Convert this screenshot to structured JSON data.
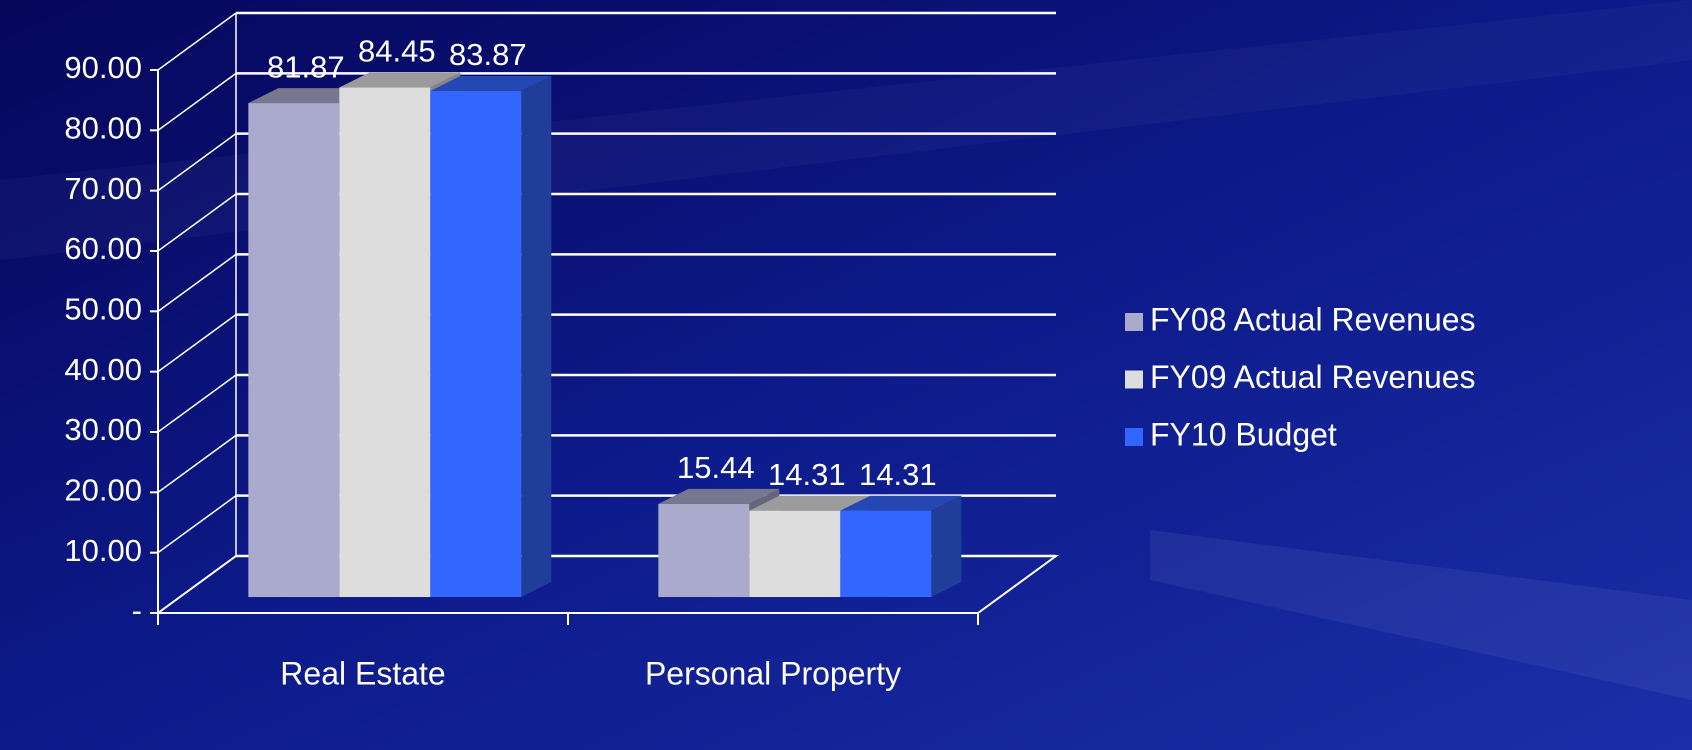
{
  "chart_data": {
    "type": "bar3d",
    "categories": [
      "Real Estate",
      "Personal Property"
    ],
    "series": [
      {
        "name": "FY08 Actual Revenues",
        "color": "#aaaacc",
        "values": [
          81.87,
          15.44
        ]
      },
      {
        "name": "FY09 Actual Revenues",
        "color": "#dddddd",
        "values": [
          84.45,
          14.31
        ]
      },
      {
        "name": "FY10 Budget",
        "color": "#3366ff",
        "values": [
          83.87,
          14.31
        ]
      }
    ],
    "ylim": [
      0,
      90
    ],
    "yticks": [
      {
        "value": 0,
        "label": "-"
      },
      {
        "value": 10,
        "label": "10.00"
      },
      {
        "value": 20,
        "label": "20.00"
      },
      {
        "value": 30,
        "label": "30.00"
      },
      {
        "value": 40,
        "label": "40.00"
      },
      {
        "value": 50,
        "label": "50.00"
      },
      {
        "value": 60,
        "label": "60.00"
      },
      {
        "value": 70,
        "label": "70.00"
      },
      {
        "value": 80,
        "label": "80.00"
      },
      {
        "value": 90,
        "label": "90.00"
      }
    ],
    "grid": true,
    "legend": "right"
  }
}
